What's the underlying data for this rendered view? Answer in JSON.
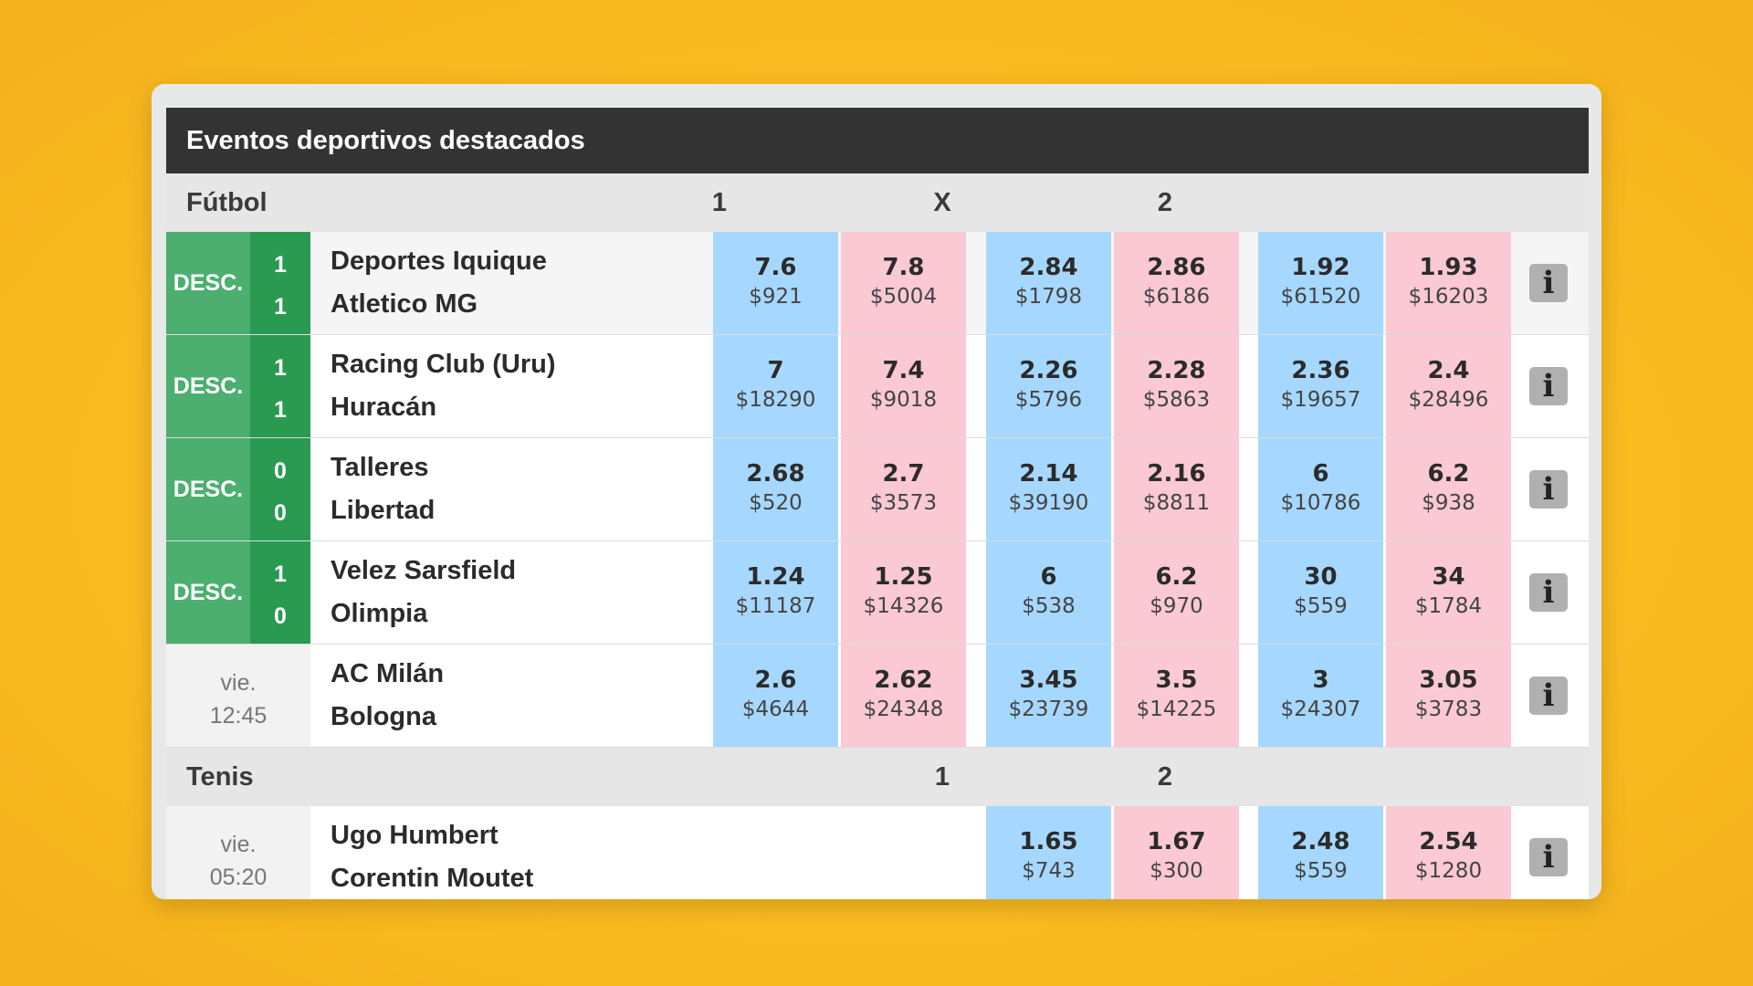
{
  "header": {
    "title": "Eventos deportivos destacados"
  },
  "football": {
    "sport": "Fútbol",
    "col_labels": [
      "1",
      "X",
      "2"
    ],
    "events": [
      {
        "status": "DESC.",
        "score_home": "1",
        "score_away": "1",
        "home": "Deportes Iquique",
        "away": "Atletico MG",
        "odds": [
          {
            "price": "7.6",
            "amount": "$921"
          },
          {
            "price": "7.8",
            "amount": "$5004"
          },
          {
            "price": "2.84",
            "amount": "$1798"
          },
          {
            "price": "2.86",
            "amount": "$6186"
          },
          {
            "price": "1.92",
            "amount": "$61520"
          },
          {
            "price": "1.93",
            "amount": "$16203"
          }
        ]
      },
      {
        "status": "DESC.",
        "score_home": "1",
        "score_away": "1",
        "home": "Racing Club (Uru)",
        "away": "Huracán",
        "odds": [
          {
            "price": "7",
            "amount": "$18290"
          },
          {
            "price": "7.4",
            "amount": "$9018"
          },
          {
            "price": "2.26",
            "amount": "$5796"
          },
          {
            "price": "2.28",
            "amount": "$5863"
          },
          {
            "price": "2.36",
            "amount": "$19657"
          },
          {
            "price": "2.4",
            "amount": "$28496"
          }
        ]
      },
      {
        "status": "DESC.",
        "score_home": "0",
        "score_away": "0",
        "home": "Talleres",
        "away": "Libertad",
        "odds": [
          {
            "price": "2.68",
            "amount": "$520"
          },
          {
            "price": "2.7",
            "amount": "$3573"
          },
          {
            "price": "2.14",
            "amount": "$39190"
          },
          {
            "price": "2.16",
            "amount": "$8811"
          },
          {
            "price": "6",
            "amount": "$10786"
          },
          {
            "price": "6.2",
            "amount": "$938"
          }
        ]
      },
      {
        "status": "DESC.",
        "score_home": "1",
        "score_away": "0",
        "home": "Velez Sarsfield",
        "away": "Olimpia",
        "odds": [
          {
            "price": "1.24",
            "amount": "$11187"
          },
          {
            "price": "1.25",
            "amount": "$14326"
          },
          {
            "price": "6",
            "amount": "$538"
          },
          {
            "price": "6.2",
            "amount": "$970"
          },
          {
            "price": "30",
            "amount": "$559"
          },
          {
            "price": "34",
            "amount": "$1784"
          }
        ]
      },
      {
        "day": "vie.",
        "time": "12:45",
        "home": "AC Milán",
        "away": "Bologna",
        "odds": [
          {
            "price": "2.6",
            "amount": "$4644"
          },
          {
            "price": "2.62",
            "amount": "$24348"
          },
          {
            "price": "3.45",
            "amount": "$23739"
          },
          {
            "price": "3.5",
            "amount": "$14225"
          },
          {
            "price": "3",
            "amount": "$24307"
          },
          {
            "price": "3.05",
            "amount": "$3783"
          }
        ]
      }
    ]
  },
  "tennis": {
    "sport": "Tenis",
    "col_labels": [
      "1",
      "2"
    ],
    "events": [
      {
        "day": "vie.",
        "time": "05:20",
        "home": "Ugo Humbert",
        "away": "Corentin Moutet",
        "odds": [
          {
            "price": "1.65",
            "amount": "$743"
          },
          {
            "price": "1.67",
            "amount": "$300"
          },
          {
            "price": "2.48",
            "amount": "$559"
          },
          {
            "price": "2.54",
            "amount": "$1280"
          }
        ]
      }
    ]
  },
  "info_icon": "info-icon",
  "info_glyph": "i",
  "colors": {
    "background": "#fbbd22",
    "header": "#333333",
    "back_odds": "#a6d8ff",
    "lay_odds": "#fac9d3",
    "live_status": "#4caf6f",
    "score": "#2a9a50"
  }
}
